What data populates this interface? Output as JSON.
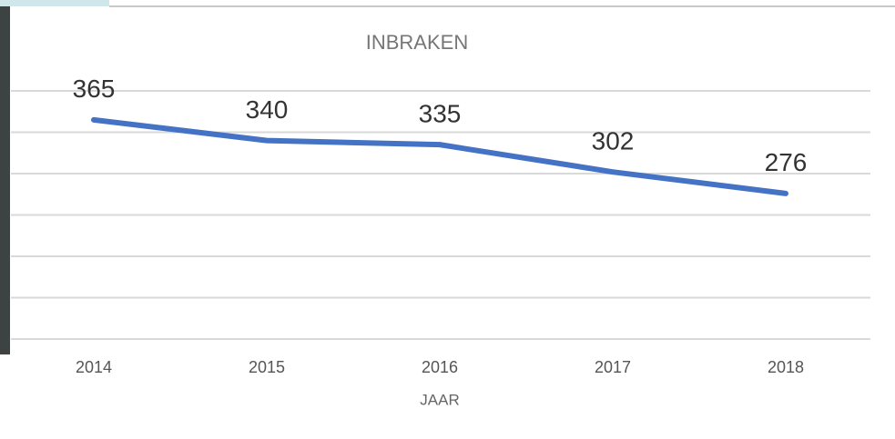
{
  "chart_data": {
    "type": "line",
    "title": "INBRAKEN",
    "x_label": "JAAR",
    "categories": [
      "2014",
      "2015",
      "2016",
      "2017",
      "2018"
    ],
    "values": [
      365,
      340,
      335,
      302,
      276
    ],
    "color": "#4472c4",
    "ylim": [
      100,
      400
    ],
    "yticks": [
      100,
      150,
      200,
      250,
      300,
      350,
      400
    ],
    "grid": true
  }
}
